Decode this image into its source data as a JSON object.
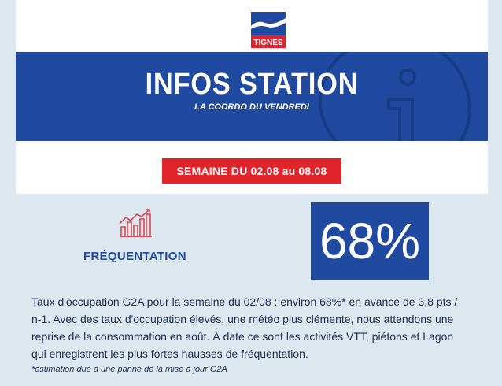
{
  "brand": {
    "logo_text": "TIGNES",
    "colors": {
      "navy": "#1f4aa0",
      "red": "#e1242c",
      "panel": "#dde7ef",
      "text": "#1f2d57"
    }
  },
  "banner": {
    "title": "INFOS STATION",
    "subtitle": "LA COORDO DU VENDREDI",
    "decor_icon": "info-icon"
  },
  "week": {
    "label": "SEMAINE DU 02.08 au 08.08"
  },
  "kpi": {
    "icon": "bar-chart-trend-icon",
    "label": "FRÉQUENTATION",
    "value": "68%"
  },
  "description": "Taux d'occupation G2A pour la semaine du 02/08 : environ 68%* en avance de 3,8 pts / n-1. Avec des taux d'occupation élevés, une météo plus clémente, nous attendons une reprise de la consommation en août. À date ce sont les activités VTT, piétons et Lagon qui enregistrent les plus fortes hausses de fréquentation.",
  "footnote": "*estimation due à une panne de la mise à jour G2A"
}
